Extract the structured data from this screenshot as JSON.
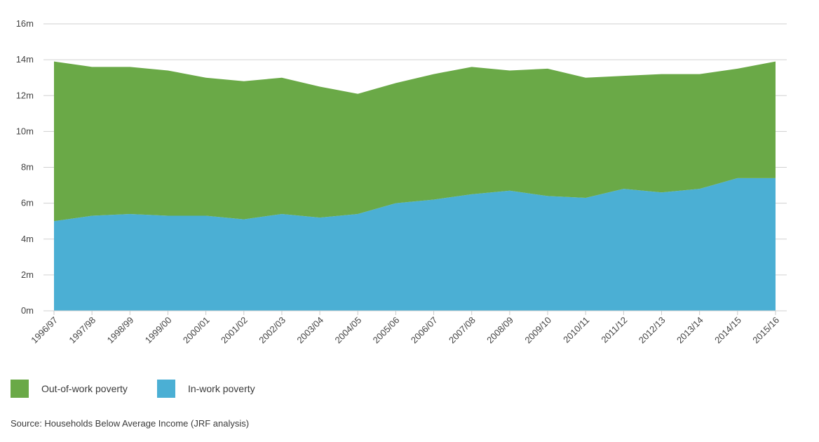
{
  "chart_data": {
    "type": "area",
    "stacked": true,
    "categories": [
      "1996/97",
      "1997/98",
      "1998/99",
      "1999/00",
      "2000/01",
      "2001/02",
      "2002/03",
      "2003/04",
      "2004/05",
      "2005/06",
      "2006/07",
      "2007/08",
      "2008/09",
      "2009/10",
      "2010/11",
      "2011/12",
      "2012/13",
      "2013/14",
      "2014/15",
      "2015/16"
    ],
    "series": [
      {
        "name": "In-work poverty",
        "color": "#4bafd4",
        "values": [
          5.0,
          5.3,
          5.4,
          5.3,
          5.3,
          5.1,
          5.4,
          5.2,
          5.4,
          6.0,
          6.2,
          6.5,
          6.7,
          6.4,
          6.3,
          6.8,
          6.6,
          6.8,
          7.4,
          7.4
        ]
      },
      {
        "name": "Out-of-work poverty",
        "color": "#6aa947",
        "values": [
          8.9,
          8.3,
          8.2,
          8.1,
          7.7,
          7.7,
          7.6,
          7.3,
          6.7,
          6.7,
          7.0,
          7.1,
          6.7,
          7.1,
          6.7,
          6.3,
          6.6,
          6.4,
          6.1,
          6.5
        ]
      }
    ],
    "y_ticks": [
      "0m",
      "2m",
      "4m",
      "6m",
      "8m",
      "10m",
      "12m",
      "14m",
      "16m"
    ],
    "ylim": [
      0,
      16
    ],
    "grid": true,
    "legend_position": "bottom-left"
  },
  "legend": {
    "out_of_work": "Out-of-work poverty",
    "in_work": "In-work poverty"
  },
  "source": "Source: Households Below Average Income (JRF analysis)",
  "colors": {
    "out_of_work": "#6aa947",
    "in_work": "#4bafd4",
    "grid": "#d0d0d0"
  }
}
